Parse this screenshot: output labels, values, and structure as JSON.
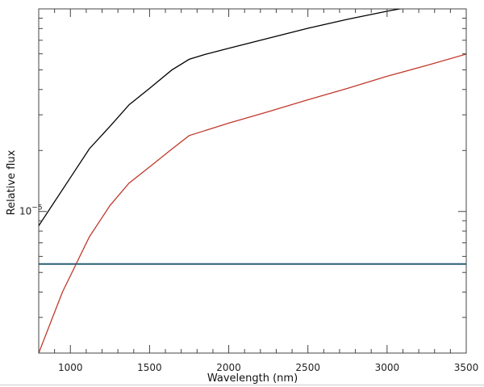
{
  "chart_data": {
    "type": "line",
    "title": "",
    "xlabel": "Wavelength (nm)",
    "ylabel": "Relative flux",
    "xlim": [
      800,
      3500
    ],
    "ylim": [
      2e-06,
      0.0001
    ],
    "yscale": "log",
    "grid": false,
    "legend": "none",
    "x_ticks": [
      1000,
      1500,
      2000,
      2500,
      3000,
      3500
    ],
    "x_tick_labels": [
      "1000",
      "1500",
      "2000",
      "2500",
      "3000",
      "3500"
    ],
    "y_tick_labels": [
      {
        "value": 1e-05,
        "base": "10",
        "exponent": "−5"
      }
    ],
    "series": [
      {
        "color": "#000000",
        "x": [
          800,
          1000,
          1120,
          1250,
          1370,
          1500,
          1640,
          1750,
          1850,
          2000,
          2250,
          2500,
          2750,
          3000,
          3250,
          3500
        ],
        "y": [
          8.5e-06,
          1.47e-05,
          2.04e-05,
          2.63e-05,
          3.36e-05,
          4.05e-05,
          4.99e-05,
          5.64e-05,
          5.96e-05,
          6.39e-05,
          7.16e-05,
          8.02e-05,
          8.88e-05,
          9.74e-05,
          0.000106,
          0.000117
        ]
      },
      {
        "color": "#c0392b",
        "x": [
          800,
          950,
          1120,
          1250,
          1370,
          1500,
          1640,
          1750,
          2000,
          2250,
          2500,
          2750,
          3000,
          3250,
          3500
        ],
        "y": [
          2e-06,
          4e-06,
          7.5e-06,
          1.07e-05,
          1.38e-05,
          1.66e-05,
          2.03e-05,
          2.37e-05,
          2.73e-05,
          3.11e-05,
          3.56e-05,
          4.05e-05,
          4.65e-05,
          5.26e-05,
          5.98e-05
        ]
      },
      {
        "color": "#2b5f75",
        "x": [
          800,
          3500
        ],
        "y": [
          5.5e-06,
          5.5e-06
        ]
      }
    ]
  }
}
